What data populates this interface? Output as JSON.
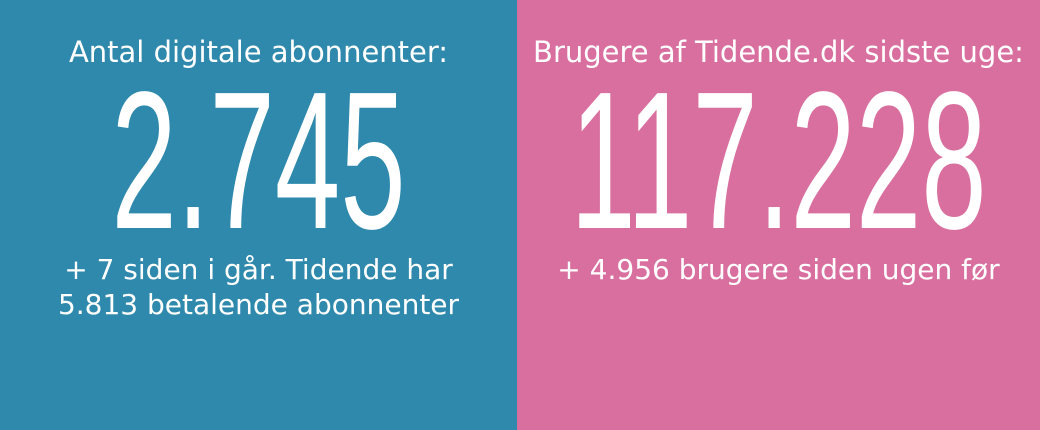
{
  "panels": [
    {
      "title": "Antal digitale abonnenter:",
      "value": "2.745",
      "note": [
        "+ 7 siden i går. Tidende har",
        "5.813 betalende abonnenter"
      ],
      "color": "#2e89ad"
    },
    {
      "title": "Brugere af Tidende.dk sidste uge:",
      "value": "117.228",
      "note": [
        "+ 4.956 brugere siden ugen før"
      ],
      "color": "#d96f9f"
    }
  ]
}
